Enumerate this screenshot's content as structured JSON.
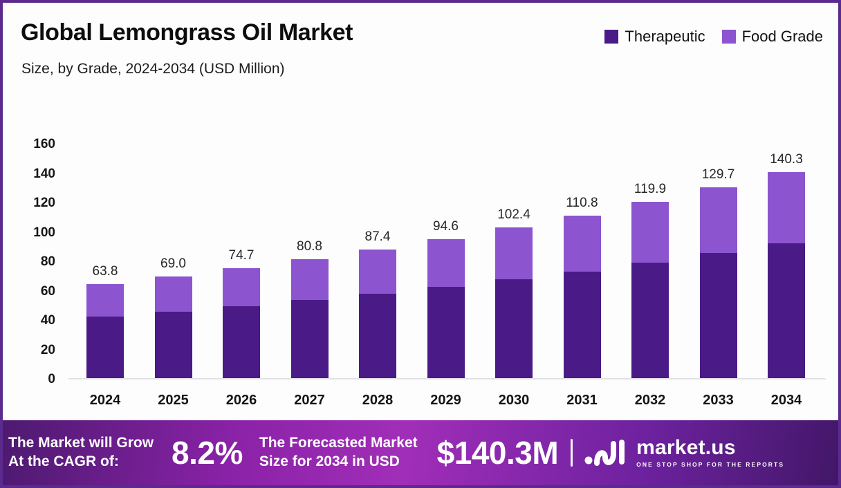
{
  "header": {
    "title": "Global Lemongrass Oil Market",
    "subtitle": "Size, by Grade, 2024-2034 (USD Million)"
  },
  "legend": [
    {
      "label": "Therapeutic",
      "color": "#4a1b87"
    },
    {
      "label": "Food Grade",
      "color": "#8c54ce"
    }
  ],
  "chart_data": {
    "type": "bar",
    "stacked": true,
    "title": "Global Lemongrass Oil Market Size, by Grade, 2024-2034 (USD Million)",
    "categories": [
      "2024",
      "2025",
      "2026",
      "2027",
      "2028",
      "2029",
      "2030",
      "2031",
      "2032",
      "2033",
      "2034"
    ],
    "series": [
      {
        "name": "Therapeutic",
        "color": "#4a1b87",
        "values": [
          41.8,
          45.2,
          49.0,
          53.0,
          57.3,
          62.0,
          67.1,
          72.6,
          78.6,
          85.0,
          92.0
        ]
      },
      {
        "name": "Food Grade",
        "color": "#8c54ce",
        "values": [
          22.0,
          23.8,
          25.7,
          27.8,
          30.1,
          32.6,
          35.3,
          38.2,
          41.3,
          44.7,
          48.3
        ]
      }
    ],
    "totals": [
      63.8,
      69.0,
      74.7,
      80.8,
      87.4,
      94.6,
      102.4,
      110.8,
      119.9,
      129.7,
      140.3
    ],
    "total_labels": [
      "63.8",
      "69.0",
      "74.7",
      "80.8",
      "87.4",
      "94.6",
      "102.4",
      "110.8",
      "119.9",
      "129.7",
      "140.3"
    ],
    "xlabel": "",
    "ylabel": "",
    "ylim": [
      0,
      160
    ],
    "y_ticks": [
      0,
      20,
      40,
      60,
      80,
      100,
      120,
      140,
      160
    ],
    "grid": false,
    "legend_position": "top-right"
  },
  "banner": {
    "cagr_label_line1": "The Market will Grow",
    "cagr_label_line2": "At the CAGR of:",
    "cagr_value": "8.2%",
    "forecast_label_line1": "The Forecasted Market",
    "forecast_label_line2": "Size for 2034 in USD",
    "forecast_value": "$140.3M",
    "brand": {
      "name": "market.us",
      "tagline": "ONE STOP SHOP FOR THE REPORTS"
    }
  },
  "colors": {
    "therapeutic": "#4a1b87",
    "food_grade": "#8c54ce",
    "frame_border": "#5b2a8e",
    "background": "#fdfdfe",
    "banner_gradient_left": "#4d1a70",
    "banner_gradient_mid": "#a12eb8",
    "banner_gradient_right": "#421768"
  }
}
